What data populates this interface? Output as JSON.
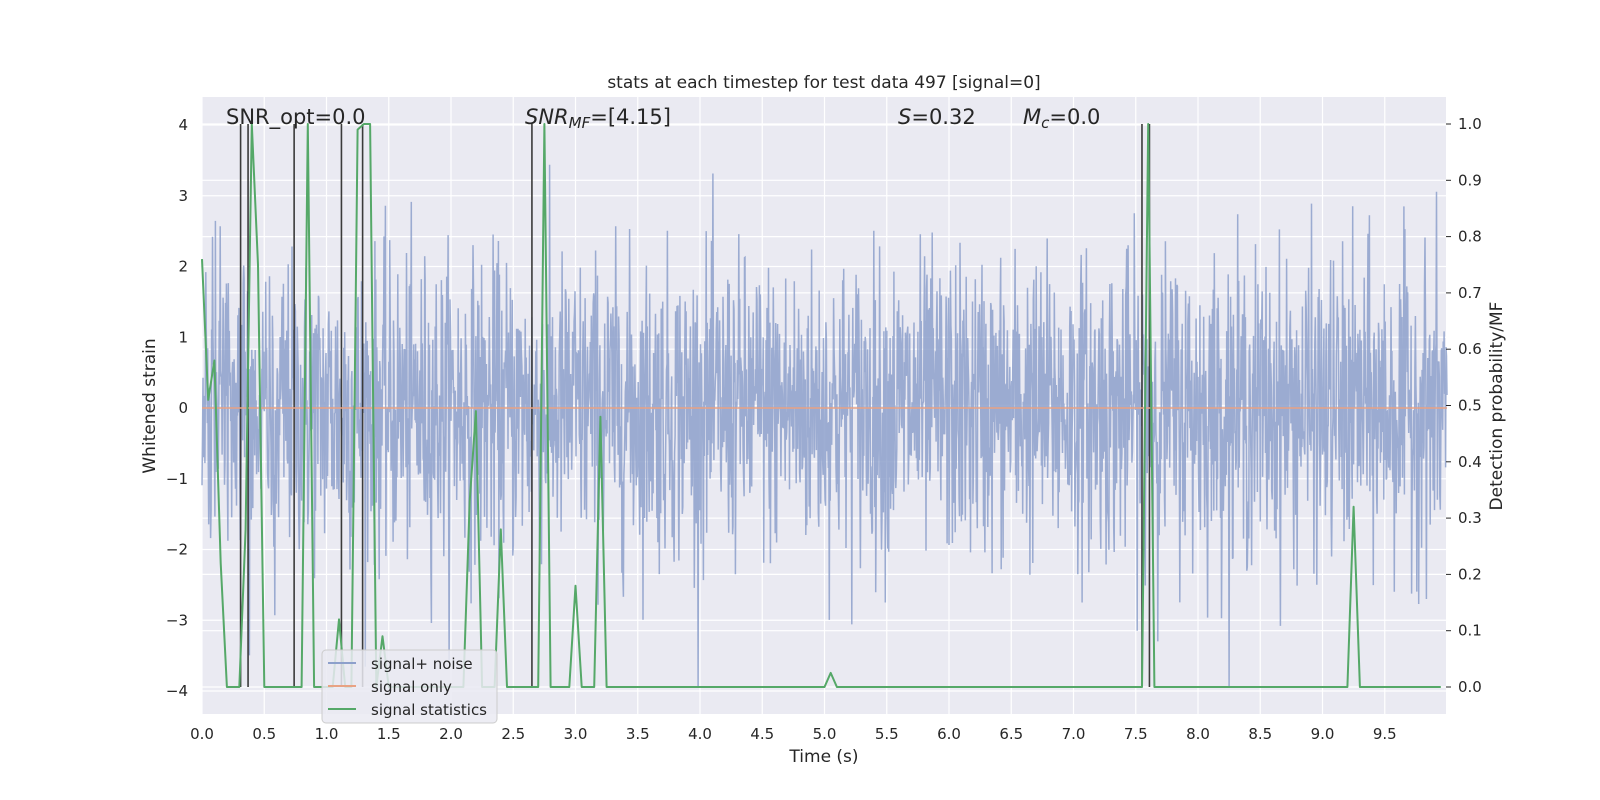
{
  "chart_data": {
    "type": "line",
    "title": "stats at each timestep for test data 497 [signal=0]",
    "xlabel": "Time (s)",
    "ylabel": "Whitened strain",
    "y2label": "Detection probability/MF",
    "xlim": [
      0,
      10
    ],
    "ylim": [
      -4.3,
      4.4
    ],
    "y2lim": [
      -0.05,
      1.05
    ],
    "grid": true,
    "legend_position": "lower-left",
    "x_ticks": [
      "0.0",
      "0.5",
      "1.0",
      "1.5",
      "2.0",
      "2.5",
      "3.0",
      "3.5",
      "4.0",
      "4.5",
      "5.0",
      "5.5",
      "6.0",
      "6.5",
      "7.0",
      "7.5",
      "8.0",
      "8.5",
      "9.0",
      "9.5"
    ],
    "y_ticks": [
      "4",
      "3",
      "2",
      "1",
      "0",
      "−1",
      "−2",
      "−3",
      "−4"
    ],
    "y2_ticks": [
      "1.0",
      "0.9",
      "0.8",
      "0.7",
      "0.6",
      "0.5",
      "0.4",
      "0.3",
      "0.2",
      "0.1",
      "0.0"
    ],
    "annotations": {
      "snr_opt": "SNR_opt=0.0",
      "snr_mf_sym": "SNR",
      "snr_mf_sub": "MF",
      "snr_mf_val": "=[4.15]",
      "s_sym": "S",
      "s_val": "=0.32",
      "mc_sym": "M",
      "mc_sub": "c",
      "mc_val": "=0.0"
    },
    "series": [
      {
        "name": "signal+ noise",
        "color": "#8da0cb",
        "note": "whitened noise, roughly within [-4, 4]"
      },
      {
        "name": "signal only",
        "color": "#e8a283",
        "x": [
          0,
          10
        ],
        "y": [
          0,
          0
        ]
      },
      {
        "name": "signal statistics",
        "color": "#55a868",
        "x": [
          0.0,
          0.05,
          0.1,
          0.15,
          0.2,
          0.25,
          0.3,
          0.35,
          0.4,
          0.45,
          0.5,
          0.55,
          0.6,
          0.65,
          0.7,
          0.75,
          0.8,
          0.85,
          0.9,
          0.95,
          1.0,
          1.05,
          1.1,
          1.15,
          1.2,
          1.25,
          1.3,
          1.35,
          1.4,
          1.45,
          1.5,
          1.55,
          1.6,
          1.65,
          1.7,
          1.75,
          1.8,
          1.85,
          1.9,
          1.95,
          2.0,
          2.05,
          2.1,
          2.15,
          2.2,
          2.25,
          2.3,
          2.35,
          2.4,
          2.45,
          2.5,
          2.55,
          2.6,
          2.65,
          2.7,
          2.75,
          2.8,
          2.85,
          2.9,
          2.95,
          3.0,
          3.05,
          3.1,
          3.15,
          3.2,
          3.25,
          3.3,
          4.95,
          5.0,
          5.05,
          5.1,
          5.15,
          7.5,
          7.55,
          7.6,
          7.65,
          7.7,
          9.1,
          9.15,
          9.2,
          9.25,
          9.3,
          9.35,
          9.95
        ],
        "y": [
          0.76,
          0.51,
          0.58,
          0.22,
          0.0,
          0.0,
          0.0,
          0.28,
          1.0,
          0.75,
          0.0,
          0.0,
          0.0,
          0.0,
          0.0,
          0.0,
          0.0,
          1.0,
          0.0,
          0.0,
          0.0,
          0.0,
          0.12,
          0.0,
          0.0,
          0.99,
          1.0,
          1.0,
          0.0,
          0.09,
          0.0,
          0.0,
          0.0,
          0.0,
          0.0,
          0.0,
          0.0,
          0.0,
          0.0,
          0.0,
          0.0,
          0.0,
          0.0,
          0.33,
          0.49,
          0.0,
          0.0,
          0.0,
          0.28,
          0.0,
          0.0,
          0.0,
          0.0,
          0.0,
          0.0,
          1.0,
          0.0,
          0.0,
          0.0,
          0.0,
          0.18,
          0.0,
          0.0,
          0.0,
          0.48,
          0.0,
          0.0,
          0.0,
          0.0,
          0.025,
          0.0,
          0.0,
          0.0,
          0.0,
          1.0,
          0.0,
          0.0,
          0.0,
          0.0,
          0.0,
          0.32,
          0.0,
          0.0,
          0.0
        ]
      }
    ],
    "vertical_markers_x": [
      0.31,
      0.37,
      0.74,
      1.12,
      1.29,
      2.65,
      7.55,
      7.61
    ]
  }
}
